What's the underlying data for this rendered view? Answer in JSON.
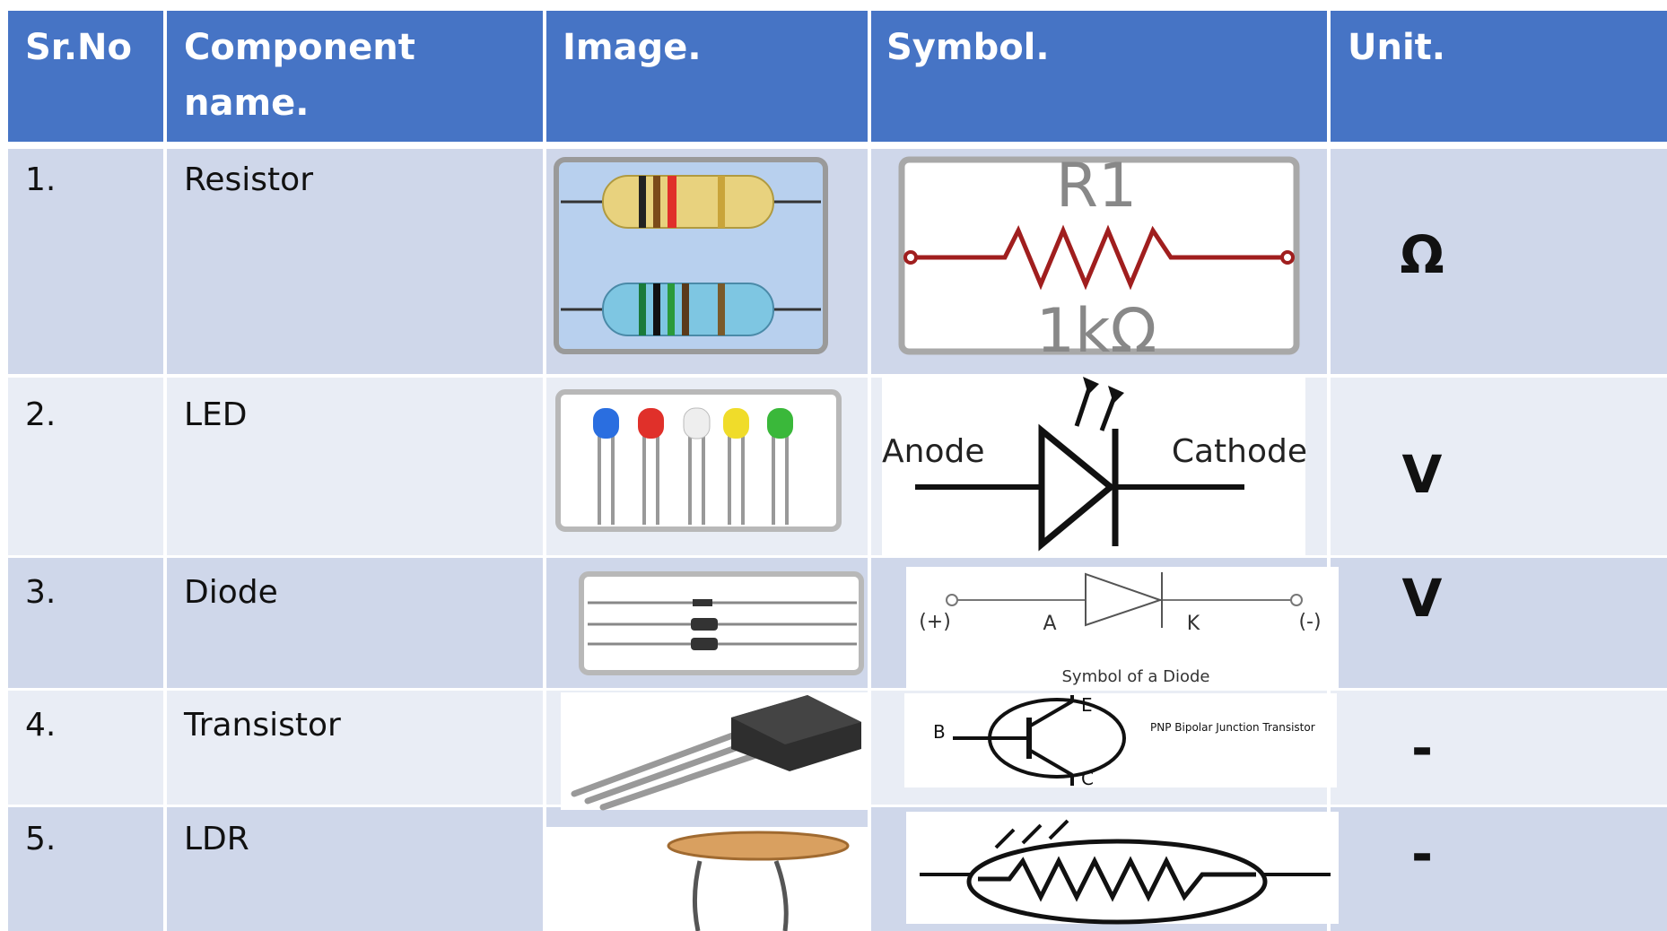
{
  "table": {
    "columns": [
      "Sr.No",
      "Component name.",
      "Image.",
      "Symbol.",
      "Unit."
    ],
    "rows": [
      {
        "sr": "1.",
        "name": "Resistor",
        "unit": "Ω",
        "symbol_texts": [
          "R1",
          "1kΩ"
        ]
      },
      {
        "sr": "2.",
        "name": "LED",
        "unit": "V",
        "symbol_texts": [
          "Anode",
          "Cathode"
        ]
      },
      {
        "sr": "3.",
        "name": "Diode",
        "unit": "V",
        "symbol_texts": [
          "(+)",
          "A",
          "K",
          "(-)",
          "Symbol of a Diode"
        ]
      },
      {
        "sr": "4.",
        "name": "Transistor",
        "unit": "-",
        "symbol_texts": [
          "B",
          "E",
          "C",
          "PNP Bipolar Junction Transistor"
        ]
      },
      {
        "sr": "5.",
        "name": "LDR",
        "unit": "-",
        "symbol_texts": []
      }
    ]
  }
}
